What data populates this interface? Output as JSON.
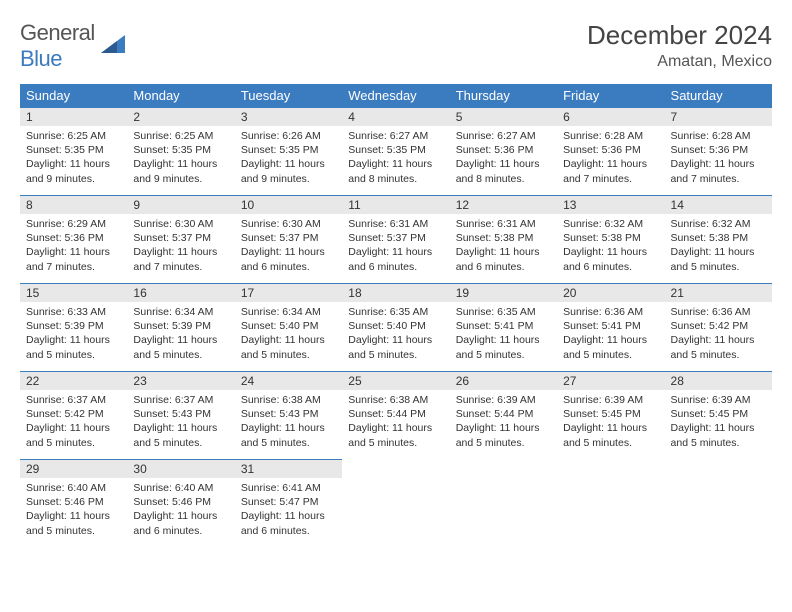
{
  "logo": {
    "text1": "General",
    "text2": "Blue"
  },
  "title": "December 2024",
  "location": "Amatan, Mexico",
  "colors": {
    "header_bg": "#3b7bbf",
    "header_text": "#ffffff",
    "daynum_bg": "#e8e8e8",
    "body_bg": "#ffffff",
    "text": "#333333",
    "logo_gray": "#555555",
    "logo_blue": "#3b7bbf"
  },
  "day_headers": [
    "Sunday",
    "Monday",
    "Tuesday",
    "Wednesday",
    "Thursday",
    "Friday",
    "Saturday"
  ],
  "weeks": [
    [
      {
        "num": "1",
        "sunrise": "Sunrise: 6:25 AM",
        "sunset": "Sunset: 5:35 PM",
        "daylight": "Daylight: 11 hours and 9 minutes."
      },
      {
        "num": "2",
        "sunrise": "Sunrise: 6:25 AM",
        "sunset": "Sunset: 5:35 PM",
        "daylight": "Daylight: 11 hours and 9 minutes."
      },
      {
        "num": "3",
        "sunrise": "Sunrise: 6:26 AM",
        "sunset": "Sunset: 5:35 PM",
        "daylight": "Daylight: 11 hours and 9 minutes."
      },
      {
        "num": "4",
        "sunrise": "Sunrise: 6:27 AM",
        "sunset": "Sunset: 5:35 PM",
        "daylight": "Daylight: 11 hours and 8 minutes."
      },
      {
        "num": "5",
        "sunrise": "Sunrise: 6:27 AM",
        "sunset": "Sunset: 5:36 PM",
        "daylight": "Daylight: 11 hours and 8 minutes."
      },
      {
        "num": "6",
        "sunrise": "Sunrise: 6:28 AM",
        "sunset": "Sunset: 5:36 PM",
        "daylight": "Daylight: 11 hours and 7 minutes."
      },
      {
        "num": "7",
        "sunrise": "Sunrise: 6:28 AM",
        "sunset": "Sunset: 5:36 PM",
        "daylight": "Daylight: 11 hours and 7 minutes."
      }
    ],
    [
      {
        "num": "8",
        "sunrise": "Sunrise: 6:29 AM",
        "sunset": "Sunset: 5:36 PM",
        "daylight": "Daylight: 11 hours and 7 minutes."
      },
      {
        "num": "9",
        "sunrise": "Sunrise: 6:30 AM",
        "sunset": "Sunset: 5:37 PM",
        "daylight": "Daylight: 11 hours and 7 minutes."
      },
      {
        "num": "10",
        "sunrise": "Sunrise: 6:30 AM",
        "sunset": "Sunset: 5:37 PM",
        "daylight": "Daylight: 11 hours and 6 minutes."
      },
      {
        "num": "11",
        "sunrise": "Sunrise: 6:31 AM",
        "sunset": "Sunset: 5:37 PM",
        "daylight": "Daylight: 11 hours and 6 minutes."
      },
      {
        "num": "12",
        "sunrise": "Sunrise: 6:31 AM",
        "sunset": "Sunset: 5:38 PM",
        "daylight": "Daylight: 11 hours and 6 minutes."
      },
      {
        "num": "13",
        "sunrise": "Sunrise: 6:32 AM",
        "sunset": "Sunset: 5:38 PM",
        "daylight": "Daylight: 11 hours and 6 minutes."
      },
      {
        "num": "14",
        "sunrise": "Sunrise: 6:32 AM",
        "sunset": "Sunset: 5:38 PM",
        "daylight": "Daylight: 11 hours and 5 minutes."
      }
    ],
    [
      {
        "num": "15",
        "sunrise": "Sunrise: 6:33 AM",
        "sunset": "Sunset: 5:39 PM",
        "daylight": "Daylight: 11 hours and 5 minutes."
      },
      {
        "num": "16",
        "sunrise": "Sunrise: 6:34 AM",
        "sunset": "Sunset: 5:39 PM",
        "daylight": "Daylight: 11 hours and 5 minutes."
      },
      {
        "num": "17",
        "sunrise": "Sunrise: 6:34 AM",
        "sunset": "Sunset: 5:40 PM",
        "daylight": "Daylight: 11 hours and 5 minutes."
      },
      {
        "num": "18",
        "sunrise": "Sunrise: 6:35 AM",
        "sunset": "Sunset: 5:40 PM",
        "daylight": "Daylight: 11 hours and 5 minutes."
      },
      {
        "num": "19",
        "sunrise": "Sunrise: 6:35 AM",
        "sunset": "Sunset: 5:41 PM",
        "daylight": "Daylight: 11 hours and 5 minutes."
      },
      {
        "num": "20",
        "sunrise": "Sunrise: 6:36 AM",
        "sunset": "Sunset: 5:41 PM",
        "daylight": "Daylight: 11 hours and 5 minutes."
      },
      {
        "num": "21",
        "sunrise": "Sunrise: 6:36 AM",
        "sunset": "Sunset: 5:42 PM",
        "daylight": "Daylight: 11 hours and 5 minutes."
      }
    ],
    [
      {
        "num": "22",
        "sunrise": "Sunrise: 6:37 AM",
        "sunset": "Sunset: 5:42 PM",
        "daylight": "Daylight: 11 hours and 5 minutes."
      },
      {
        "num": "23",
        "sunrise": "Sunrise: 6:37 AM",
        "sunset": "Sunset: 5:43 PM",
        "daylight": "Daylight: 11 hours and 5 minutes."
      },
      {
        "num": "24",
        "sunrise": "Sunrise: 6:38 AM",
        "sunset": "Sunset: 5:43 PM",
        "daylight": "Daylight: 11 hours and 5 minutes."
      },
      {
        "num": "25",
        "sunrise": "Sunrise: 6:38 AM",
        "sunset": "Sunset: 5:44 PM",
        "daylight": "Daylight: 11 hours and 5 minutes."
      },
      {
        "num": "26",
        "sunrise": "Sunrise: 6:39 AM",
        "sunset": "Sunset: 5:44 PM",
        "daylight": "Daylight: 11 hours and 5 minutes."
      },
      {
        "num": "27",
        "sunrise": "Sunrise: 6:39 AM",
        "sunset": "Sunset: 5:45 PM",
        "daylight": "Daylight: 11 hours and 5 minutes."
      },
      {
        "num": "28",
        "sunrise": "Sunrise: 6:39 AM",
        "sunset": "Sunset: 5:45 PM",
        "daylight": "Daylight: 11 hours and 5 minutes."
      }
    ],
    [
      {
        "num": "29",
        "sunrise": "Sunrise: 6:40 AM",
        "sunset": "Sunset: 5:46 PM",
        "daylight": "Daylight: 11 hours and 5 minutes."
      },
      {
        "num": "30",
        "sunrise": "Sunrise: 6:40 AM",
        "sunset": "Sunset: 5:46 PM",
        "daylight": "Daylight: 11 hours and 6 minutes."
      },
      {
        "num": "31",
        "sunrise": "Sunrise: 6:41 AM",
        "sunset": "Sunset: 5:47 PM",
        "daylight": "Daylight: 11 hours and 6 minutes."
      },
      null,
      null,
      null,
      null
    ]
  ]
}
